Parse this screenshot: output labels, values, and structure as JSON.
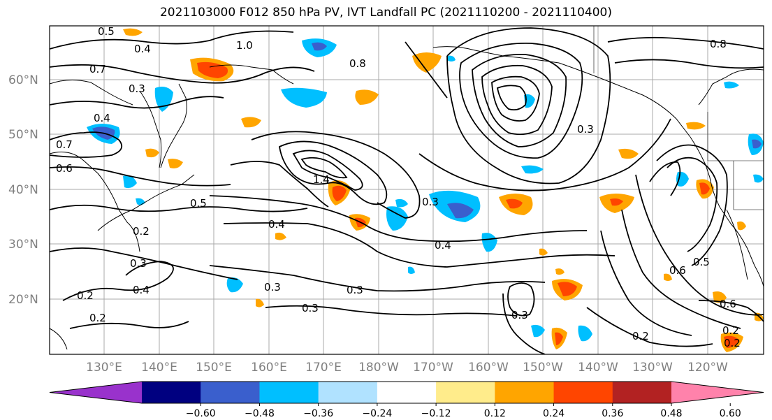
{
  "title": "2021103000 F012 850 hPa PV, IVT Landfall PC (2021110200 - 2021110400)",
  "lat_labels": [
    "60°N",
    "50°N",
    "40°N",
    "30°N",
    "20°N"
  ],
  "lon_labels": [
    "130°E",
    "140°E",
    "150°E",
    "160°E",
    "170°E",
    "180°W",
    "170°W",
    "160°W",
    "150°W",
    "140°W",
    "130°W",
    "120°W"
  ],
  "contour_labels": [
    "0.4",
    "0.5",
    "0.7",
    "1.0",
    "0.8",
    "0.3",
    "0.4",
    "0.7",
    "0.6",
    "0.5",
    "0.4",
    "0.3",
    "0.2",
    "0.2",
    "0.3",
    "0.4",
    "0.3",
    "0.2",
    "0.3",
    "0.4",
    "0.3",
    "0.3",
    "0.2",
    "0.5",
    "0.6",
    "0.6",
    "0.2",
    "0.2",
    "0.3",
    "0.8",
    "1.4"
  ],
  "colorbar": {
    "ticks": [
      "−0.60",
      "−0.48",
      "−0.36",
      "−0.24",
      "−0.12",
      "0.12",
      "0.24",
      "0.36",
      "0.48",
      "0.60"
    ],
    "colors": [
      "#9932cc",
      "#000080",
      "#3a5fcd",
      "#00bfff",
      "#b0e2ff",
      "#ffffff",
      "#ffec8b",
      "#ffa500",
      "#ff4500",
      "#b22222",
      "#ff82ab"
    ]
  }
}
